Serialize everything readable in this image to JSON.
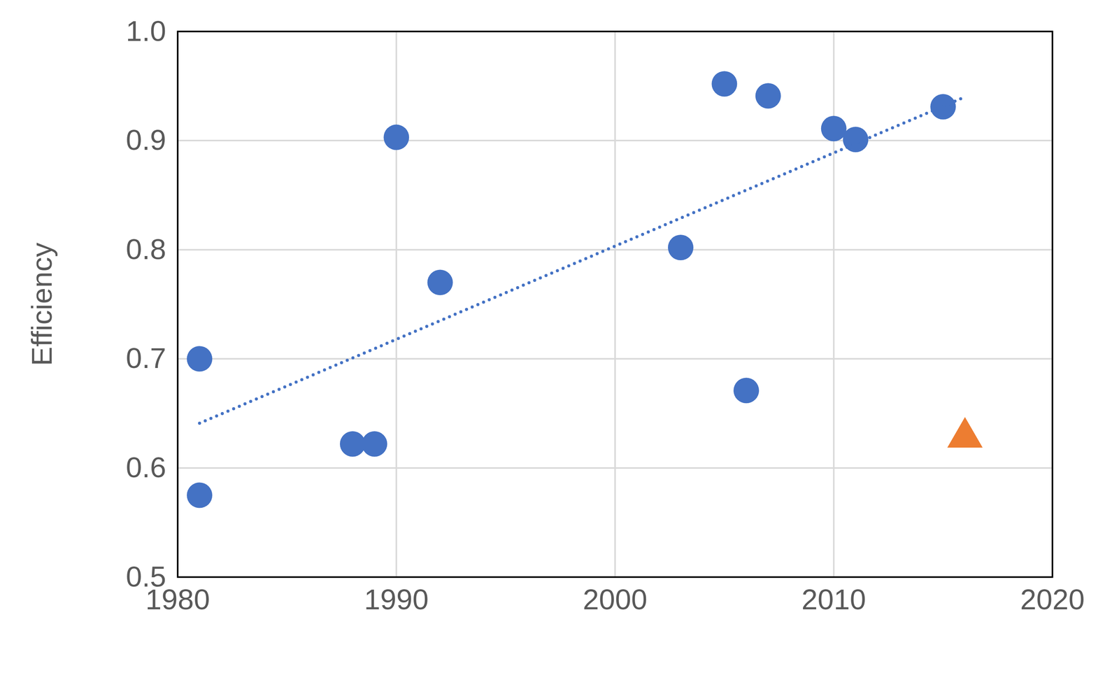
{
  "chart_data": {
    "type": "scatter",
    "y_label": "Efficiency",
    "xlim": [
      1980,
      2020
    ],
    "xticks": [
      1980,
      1990,
      2000,
      2010,
      2020
    ],
    "ylim": [
      0.5,
      1.0
    ],
    "yticks": [
      0.5,
      0.6,
      0.7,
      0.8,
      0.9,
      {
        "value": 1.0,
        "label": "1.0"
      }
    ],
    "grid": true,
    "series": [
      {
        "type": "scatter",
        "marker": "circle",
        "color": "#4472c4",
        "x": [
          1981,
          1981,
          1988,
          1989,
          1990,
          1992,
          2003,
          2005,
          2006,
          2007,
          2010,
          2011,
          2015
        ],
        "values": [
          0.7,
          0.575,
          0.622,
          0.622,
          0.903,
          0.77,
          0.802,
          0.952,
          0.671,
          0.941,
          0.911,
          0.901,
          0.931
        ]
      },
      {
        "type": "line",
        "line_style": "dotted",
        "color": "#4472c4",
        "x": [
          1981,
          2016
        ],
        "values": [
          0.641,
          0.94
        ]
      },
      {
        "type": "scatter",
        "marker": "triangle",
        "color": "#ed7d31",
        "x": [
          2016
        ],
        "values": [
          0.628
        ]
      }
    ]
  }
}
